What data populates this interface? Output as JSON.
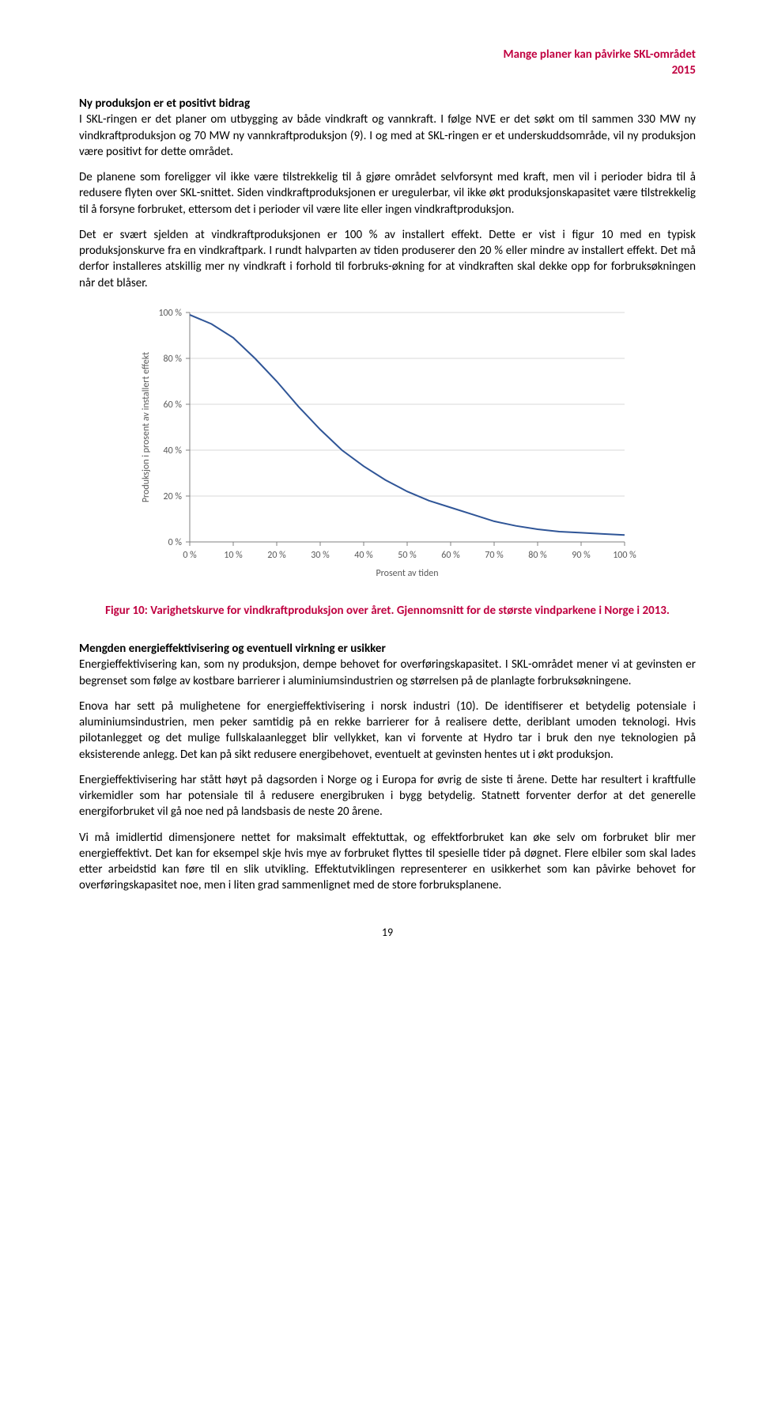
{
  "header": {
    "running_title": "Mange planer kan påvirke SKL-området",
    "year": "2015"
  },
  "section1": {
    "heading": "Ny produksjon er et positivt bidrag",
    "p1": "I SKL-ringen er det planer om utbygging av både vindkraft og vannkraft. I følge NVE er det søkt om til sammen 330 MW ny vindkraftproduksjon og 70 MW ny vannkraftproduksjon (9). I og med at SKL-ringen er et underskuddsområde, vil ny produksjon være positivt for dette området.",
    "p2": "De planene som foreligger vil ikke være tilstrekkelig til å gjøre området selvforsynt med kraft, men vil i perioder bidra til å redusere flyten over SKL-snittet. Siden vindkraftproduksjonen er uregulerbar, vil ikke økt produksjonskapasitet være tilstrekkelig til å forsyne forbruket, ettersom det i perioder vil være lite eller ingen vindkraftproduksjon.",
    "p3": "Det er svært sjelden at vindkraftproduksjonen er 100 % av installert effekt. Dette er vist i figur 10 med en typisk produksjonskurve fra en vindkraftpark. I rundt halvparten av tiden produserer den 20 % eller mindre av installert effekt. Det må derfor installeres atskillig mer ny vindkraft i forhold til forbruks-økning for at vindkraften skal dekke opp for forbruksøkningen når det blåser."
  },
  "chart": {
    "type": "line",
    "y_label": "Produksjon i prosent av installert effekt",
    "x_label": "Prosent av tiden",
    "x_ticks": [
      "0 %",
      "10 %",
      "20 %",
      "30 %",
      "40 %",
      "50 %",
      "60 %",
      "70 %",
      "80 %",
      "90 %",
      "100 %"
    ],
    "y_ticks": [
      "0 %",
      "20 %",
      "40 %",
      "60 %",
      "80 %",
      "100 %"
    ],
    "xlim": [
      0,
      100
    ],
    "ylim": [
      0,
      100
    ],
    "data_x": [
      0,
      5,
      10,
      15,
      20,
      25,
      30,
      35,
      40,
      45,
      50,
      55,
      60,
      65,
      70,
      75,
      80,
      85,
      90,
      95,
      100
    ],
    "data_y": [
      99,
      95,
      89,
      80,
      70,
      59,
      49,
      40,
      33,
      27,
      22,
      18,
      15,
      12,
      9,
      7,
      5.5,
      4.5,
      4,
      3.5,
      3
    ],
    "line_color": "#2f5597",
    "line_width": 2,
    "grid_color": "#d9d9d9",
    "axis_color": "#808080",
    "background": "#ffffff",
    "tick_font_size": 12,
    "label_font_size": 12
  },
  "figure_caption": "Figur 10: Varighetskurve for vindkraftproduksjon over året. Gjennomsnitt for de største vindparkene i Norge i 2013.",
  "section2": {
    "heading": "Mengden energieffektivisering og eventuell virkning er usikker",
    "p1": "Energieffektivisering kan, som ny produksjon, dempe behovet for overføringskapasitet. I SKL-området mener vi at gevinsten er begrenset som følge av kostbare barrierer i aluminiumsindustrien og størrelsen på de planlagte forbruksøkningene.",
    "p2": "Enova har sett på mulighetene for energieffektivisering i norsk industri (10). De identifiserer et betydelig potensiale i aluminiumsindustrien, men peker samtidig på en rekke barrierer for å realisere dette, deriblant umoden teknologi. Hvis pilotanlegget og det mulige fullskalaanlegget blir vellykket, kan vi forvente at Hydro tar i bruk den nye teknologien på eksisterende anlegg. Det kan på sikt redusere energibehovet, eventuelt at gevinsten hentes ut i økt produksjon.",
    "p3": "Energieffektivisering har stått høyt på dagsorden i Norge og i Europa for øvrig de siste ti årene. Dette har resultert i kraftfulle virkemidler som har potensiale til å redusere energibruken i bygg betydelig. Statnett forventer derfor at det generelle energiforbruket vil gå noe ned på landsbasis de neste 20 årene.",
    "p4": "Vi må imidlertid dimensjonere nettet for maksimalt effektuttak, og effektforbruket kan øke selv om forbruket blir mer energieffektivt. Det kan for eksempel skje hvis mye av forbruket flyttes til spesielle tider på døgnet. Flere elbiler som skal lades etter arbeidstid kan føre til en slik utvikling. Effektutviklingen representerer en usikkerhet som kan påvirke behovet for overføringskapasitet noe, men i liten grad sammenlignet med de store forbruksplanene."
  },
  "page_number": "19"
}
